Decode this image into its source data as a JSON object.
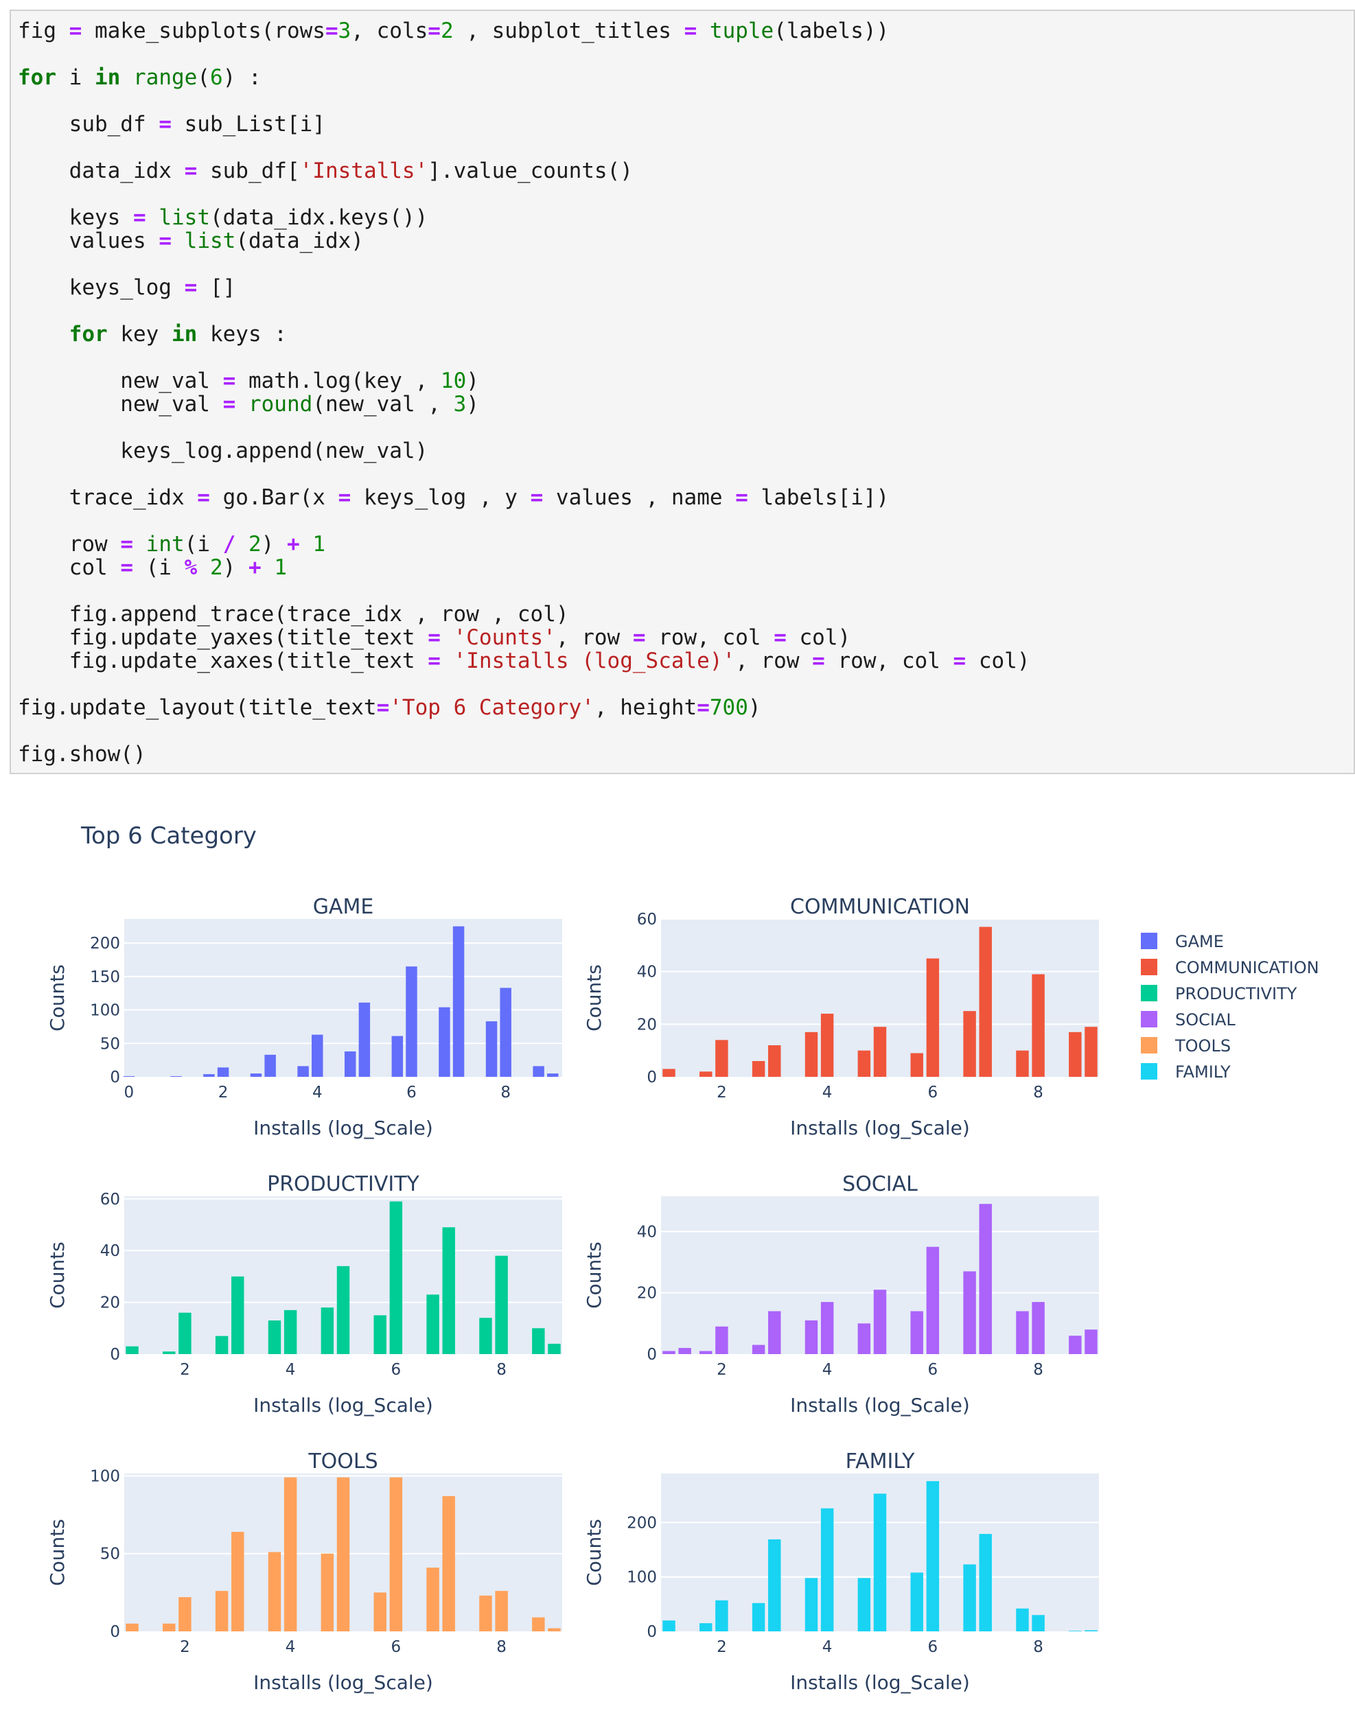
{
  "code_lines": [
    "fig = make_subplots(rows=3, cols=2 , subplot_titles = tuple(labels))",
    "",
    "for i in range(6) :",
    "",
    "    sub_df = sub_List[i]",
    "",
    "    data_idx = sub_df['Installs'].value_counts()",
    "",
    "    keys = list(data_idx.keys())",
    "    values = list(data_idx)",
    "",
    "    keys_log = []",
    "",
    "    for key in keys :",
    "",
    "        new_val = math.log(key , 10)",
    "        new_val = round(new_val , 3)",
    "",
    "        keys_log.append(new_val)",
    "",
    "    trace_idx = go.Bar(x = keys_log , y = values , name = labels[i])",
    "",
    "    row = int(i / 2) + 1",
    "    col = (i % 2) + 1",
    "",
    "    fig.append_trace(trace_idx , row , col)",
    "    fig.update_yaxes(title_text = 'Counts', row = row, col = col)",
    "    fig.update_xaxes(title_text = 'Installs (log_Scale)', row = row, col = col)",
    "",
    "fig.update_layout(title_text='Top 6 Category', height=700)",
    "",
    "fig.show()"
  ],
  "figure": {
    "title": "Top 6 Category",
    "xlabel": "Installs (log_Scale)",
    "ylabel": "Counts",
    "plot_bg": "#e5ecf6",
    "legend": [
      {
        "name": "GAME",
        "color": "#636efa"
      },
      {
        "name": "COMMUNICATION",
        "color": "#ef553b"
      },
      {
        "name": "PRODUCTIVITY",
        "color": "#00cc96"
      },
      {
        "name": "SOCIAL",
        "color": "#ab63fa"
      },
      {
        "name": "TOOLS",
        "color": "#ffa15a"
      },
      {
        "name": "FAMILY",
        "color": "#19d3f3"
      }
    ]
  },
  "chart_data": [
    {
      "type": "bar",
      "title": "GAME",
      "color": "#636efa",
      "xlabel": "Installs (log_Scale)",
      "ylabel": "Counts",
      "xlim": [
        -0.1,
        9.2
      ],
      "ylim": [
        0,
        236
      ],
      "xticks": [
        0,
        2,
        4,
        6,
        8
      ],
      "yticks": [
        0,
        50,
        100,
        150,
        200
      ],
      "x": [
        0,
        1,
        1.699,
        2,
        2.699,
        3,
        3.699,
        4,
        4.699,
        5,
        5.699,
        6,
        6.699,
        7,
        7.699,
        8,
        8.699,
        9
      ],
      "values": [
        1,
        1,
        4,
        14,
        5,
        33,
        16,
        63,
        38,
        111,
        61,
        165,
        104,
        225,
        83,
        133,
        16,
        5
      ]
    },
    {
      "type": "bar",
      "title": "COMMUNICATION",
      "color": "#ef553b",
      "xlabel": "Installs (log_Scale)",
      "ylabel": "Counts",
      "xlim": [
        0.85,
        9.15
      ],
      "ylim": [
        0,
        60
      ],
      "xticks": [
        2,
        4,
        6,
        8
      ],
      "yticks": [
        0,
        20,
        40,
        60
      ],
      "x": [
        1,
        1.699,
        2,
        2.699,
        3,
        3.699,
        4,
        4.699,
        5,
        5.699,
        6,
        6.699,
        7,
        7.699,
        8,
        8.699,
        9
      ],
      "values": [
        3,
        2,
        14,
        6,
        12,
        17,
        24,
        10,
        19,
        9,
        45,
        25,
        57,
        10,
        39,
        17,
        19
      ]
    },
    {
      "type": "bar",
      "title": "PRODUCTIVITY",
      "color": "#00cc96",
      "xlabel": "Installs (log_Scale)",
      "ylabel": "Counts",
      "xlim": [
        0.85,
        9.15
      ],
      "ylim": [
        0,
        61
      ],
      "xticks": [
        2,
        4,
        6,
        8
      ],
      "yticks": [
        0,
        20,
        40,
        60
      ],
      "x": [
        1,
        1.699,
        2,
        2.699,
        3,
        3.699,
        4,
        4.699,
        5,
        5.699,
        6,
        6.699,
        7,
        7.699,
        8,
        8.699,
        9
      ],
      "values": [
        3,
        1,
        16,
        7,
        30,
        13,
        17,
        18,
        34,
        15,
        59,
        23,
        49,
        14,
        38,
        10,
        4
      ]
    },
    {
      "type": "bar",
      "title": "SOCIAL",
      "color": "#ab63fa",
      "xlabel": "Installs (log_Scale)",
      "ylabel": "Counts",
      "xlim": [
        0.85,
        9.15
      ],
      "ylim": [
        0,
        51.5
      ],
      "xticks": [
        2,
        4,
        6,
        8
      ],
      "yticks": [
        0,
        20,
        40
      ],
      "x": [
        1,
        1.301,
        1.699,
        2,
        2.699,
        3,
        3.699,
        4,
        4.699,
        5,
        5.699,
        6,
        6.699,
        7,
        7.699,
        8,
        8.699,
        9
      ],
      "values": [
        1,
        2,
        1,
        9,
        3,
        14,
        11,
        17,
        10,
        21,
        14,
        35,
        27,
        49,
        14,
        17,
        6,
        8
      ]
    },
    {
      "type": "bar",
      "title": "TOOLS",
      "color": "#ffa15a",
      "xlabel": "Installs (log_Scale)",
      "ylabel": "Counts",
      "xlim": [
        0.85,
        9.15
      ],
      "ylim": [
        0,
        101.5
      ],
      "xticks": [
        2,
        4,
        6,
        8
      ],
      "yticks": [
        0,
        50,
        100
      ],
      "x": [
        1,
        1.699,
        2,
        2.699,
        3,
        3.699,
        4,
        4.699,
        5,
        5.699,
        6,
        6.699,
        7,
        7.699,
        8,
        8.699,
        9
      ],
      "values": [
        5,
        5,
        22,
        26,
        64,
        51,
        99,
        50,
        99,
        25,
        99,
        41,
        87,
        23,
        26,
        9,
        2
      ]
    },
    {
      "type": "bar",
      "title": "FAMILY",
      "color": "#19d3f3",
      "xlabel": "Installs (log_Scale)",
      "ylabel": "Counts",
      "xlim": [
        0.85,
        9.15
      ],
      "ylim": [
        0,
        290
      ],
      "xticks": [
        2,
        4,
        6,
        8
      ],
      "yticks": [
        0,
        100,
        200
      ],
      "x": [
        1,
        1.699,
        2,
        2.699,
        3,
        3.699,
        4,
        4.699,
        5,
        5.699,
        6,
        6.699,
        7,
        7.699,
        8,
        8.699,
        9
      ],
      "values": [
        20,
        15,
        57,
        52,
        169,
        98,
        226,
        98,
        253,
        108,
        276,
        123,
        179,
        42,
        30,
        1,
        2
      ]
    }
  ]
}
